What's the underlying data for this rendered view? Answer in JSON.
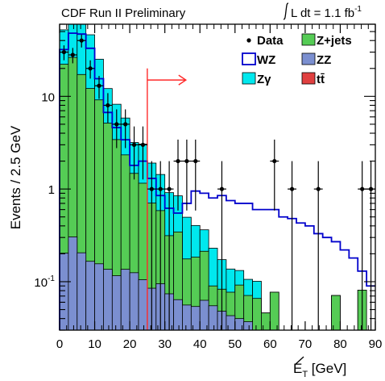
{
  "header": {
    "title": "CDF Run II Preliminary",
    "lumi_prefix": "L dt = 1.1 fb",
    "lumi_sup": "-1"
  },
  "chart_data": {
    "type": "histogram",
    "xlabel_main": "E",
    "xlabel_sub": "T",
    "xlabel_unit": " [GeV]",
    "ylabel": "Events / 2.5 GeV",
    "xlim": [
      0,
      90
    ],
    "ylim": [
      0.03,
      60
    ],
    "yscale": "log",
    "x_ticks": [
      0,
      10,
      20,
      30,
      40,
      50,
      60,
      70,
      80,
      90
    ],
    "y_ticks": [
      {
        "value": 0.1,
        "base": "10",
        "sup": "-1"
      },
      {
        "value": 1,
        "base": "1",
        "sup": ""
      },
      {
        "value": 10,
        "base": "10",
        "sup": ""
      }
    ],
    "bin_width": 2.5,
    "cut": {
      "x": 25,
      "arrow_to": 36,
      "arrow_y": 15,
      "y_top": 20,
      "color": "#ff2a2a"
    },
    "stacks": [
      {
        "name": "Zγ",
        "color": "#00e8ee",
        "values": [
          30,
          50,
          48,
          34,
          16,
          7,
          4.8,
          3.5,
          1.7,
          1.9,
          1.2,
          0.85,
          0.6,
          0.5,
          0.32,
          0.22,
          0.15,
          0.14,
          0.09,
          0.06,
          0.04,
          0.035,
          0.035,
          0,
          0,
          0,
          0,
          0,
          0,
          0,
          0,
          0,
          0,
          0,
          0,
          0
        ]
      },
      {
        "name": "Z+jets",
        "color": "#55cc55",
        "values": [
          22,
          26,
          17,
          12,
          9,
          5,
          3.3,
          2.2,
          1.35,
          1.05,
          0.62,
          0.49,
          0.24,
          0.28,
          0.12,
          0.13,
          0.15,
          0.035,
          0.035,
          0.034,
          0.052,
          0.034,
          0.036,
          0.018,
          0.05,
          0.004,
          0,
          0,
          0,
          0,
          0,
          0.056,
          0,
          0,
          0.07,
          0
        ]
      },
      {
        "name": "ZZ",
        "color": "#7b8fd0",
        "values": [
          0.2,
          0.3,
          0.2,
          0.16,
          0.15,
          0.13,
          0.11,
          0.13,
          0.12,
          0.1,
          0.08,
          0.09,
          0.07,
          0.06,
          0.052,
          0.05,
          0.06,
          0.052,
          0.045,
          0.04,
          0.038,
          0.035,
          0.028,
          0.026,
          0.025,
          0.022,
          0.022,
          0.02,
          0.019,
          0.018,
          0.016,
          0.014,
          0.013,
          0.012,
          0.01,
          0.01
        ]
      },
      {
        "name": "tt̄",
        "color": "#e04040",
        "values": [
          0.003,
          0.004,
          0.005,
          0.006,
          0.006,
          0.006,
          0.006,
          0.006,
          0.005,
          0.005,
          0.005,
          0.005,
          0.004,
          0.004,
          0.004,
          0.004,
          0.003,
          0.003,
          0.003,
          0.003,
          0.002,
          0.002,
          0.002,
          0.002,
          0.002,
          0.002,
          0.001,
          0.001,
          0.001,
          0.001,
          0.001,
          0.001,
          0.001,
          0.001,
          0.001,
          0.001
        ]
      }
    ],
    "wz_line": {
      "name": "WZ",
      "color": "#0000cc",
      "values": [
        32,
        48,
        47,
        33,
        15.5,
        6.7,
        4.6,
        3.4,
        1.8,
        2.0,
        1.3,
        0.85,
        0.62,
        0.55,
        0.7,
        0.95,
        0.9,
        0.8,
        0.85,
        0.75,
        0.7,
        0.7,
        0.6,
        0.6,
        0.6,
        0.5,
        0.48,
        0.43,
        0.4,
        0.33,
        0.3,
        0.27,
        0.22,
        0.18,
        0.13,
        0.09
      ]
    },
    "data_points": {
      "name": "Data",
      "color": "#000000",
      "x": [
        1.25,
        3.75,
        6.25,
        8.75,
        11.25,
        13.75,
        16.25,
        18.75,
        21.25,
        23.75,
        26.25,
        28.75,
        31.25,
        33.75,
        36.25,
        38.75,
        46.25,
        61.25,
        66.25,
        73.75,
        86.25,
        88.75
      ],
      "y": [
        30,
        28,
        40,
        20,
        13,
        8,
        5,
        5,
        3,
        3,
        1,
        1,
        1,
        2,
        2,
        2,
        1,
        2,
        1,
        1,
        1,
        1
      ]
    },
    "legend": [
      {
        "name": "Data",
        "kind": "marker"
      },
      {
        "name": "Z+jets",
        "kind": "fill",
        "color": "#55cc55"
      },
      {
        "name": "WZ",
        "kind": "line",
        "color": "#0000cc"
      },
      {
        "name": "ZZ",
        "kind": "fill",
        "color": "#7b8fd0"
      },
      {
        "name": "Zγ",
        "kind": "fill",
        "color": "#00e8ee"
      },
      {
        "name": "tt̄",
        "kind": "fill",
        "color": "#e04040"
      }
    ]
  }
}
